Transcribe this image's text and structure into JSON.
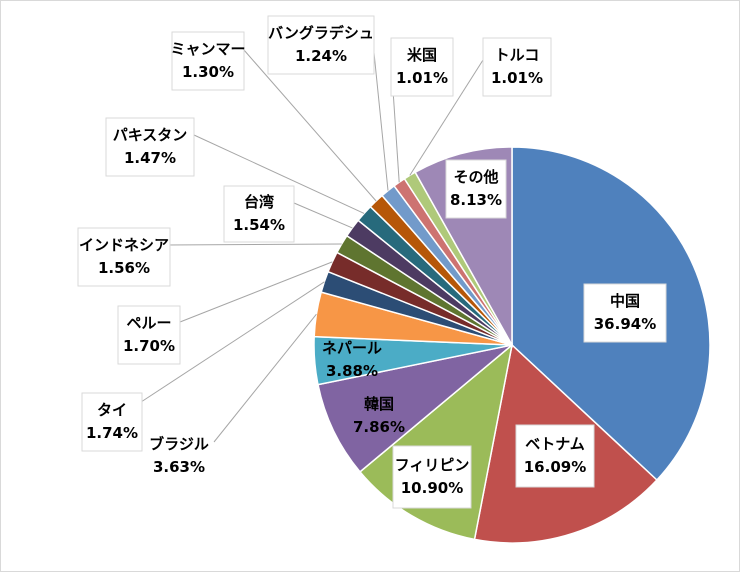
{
  "chart_data": {
    "type": "pie",
    "title": "",
    "start": "12 o'clock",
    "direction": "clockwise",
    "slices": [
      {
        "label": "中国",
        "value": 36.94,
        "text": "36.94%",
        "color": "#4f81bd"
      },
      {
        "label": "ベトナム",
        "value": 16.09,
        "text": "16.09%",
        "color": "#c0504d"
      },
      {
        "label": "フィリピン",
        "value": 10.9,
        "text": "10.90%",
        "color": "#9bbb59"
      },
      {
        "label": "韓国",
        "value": 7.86,
        "text": "7.86%",
        "color": "#8064a2"
      },
      {
        "label": "ネパール",
        "value": 3.88,
        "text": "3.88%",
        "color": "#4bacc6"
      },
      {
        "label": "ブラジル",
        "value": 3.63,
        "text": "3.63%",
        "color": "#f79646"
      },
      {
        "label": "タイ",
        "value": 1.74,
        "text": "1.74%",
        "color": "#2c4d75"
      },
      {
        "label": "ペルー",
        "value": 1.7,
        "text": "1.70%",
        "color": "#772c2a"
      },
      {
        "label": "インドネシア",
        "value": 1.56,
        "text": "1.56%",
        "color": "#5f7530"
      },
      {
        "label": "台湾",
        "value": 1.54,
        "text": "1.54%",
        "color": "#4d3b62"
      },
      {
        "label": "パキスタン",
        "value": 1.47,
        "text": "1.47%",
        "color": "#276a7c"
      },
      {
        "label": "ミャンマー",
        "value": 1.3,
        "text": "1.30%",
        "color": "#b65708"
      },
      {
        "label": "バングラデシュ",
        "value": 1.24,
        "text": "1.24%",
        "color": "#729aca"
      },
      {
        "label": "米国",
        "value": 1.01,
        "text": "1.01%",
        "color": "#cd7371"
      },
      {
        "label": "トルコ",
        "value": 1.01,
        "text": "1.01%",
        "color": "#afc97a"
      },
      {
        "label": "その他",
        "value": 8.13,
        "text": "8.13%",
        "color": "#9e88b6"
      }
    ]
  }
}
